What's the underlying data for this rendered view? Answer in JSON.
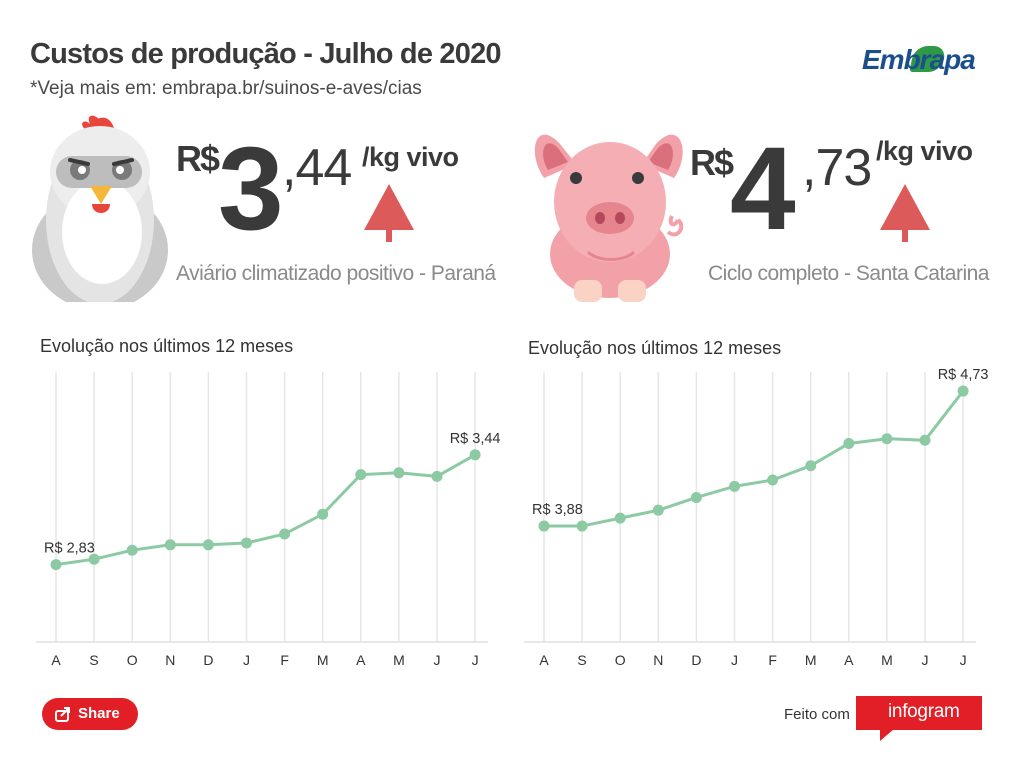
{
  "header": {
    "title": "Custos de produção - Julho de 2020",
    "subtitle": "*Veja mais em: embrapa.br/suinos-e-aves/cias",
    "logo": "Embrapa"
  },
  "chicken": {
    "currency": "R$",
    "integer": "3",
    "decimals": ",44",
    "unit": "/kg vivo",
    "caption": "Aviário climatizado positivo - Paraná",
    "trend": "up"
  },
  "pig": {
    "currency": "R$",
    "integer": "4",
    "decimals": ",73",
    "unit": "/kg vivo",
    "caption": "Ciclo completo - Santa Catarina",
    "trend": "up"
  },
  "colors": {
    "line": "#8ccaa4",
    "arrow": "#dd5a5a",
    "grid": "#e6e6e6",
    "brand_red": "#e21f26",
    "pig_pink": "#f2a1a8",
    "chicken_gray": "#c9c9c9"
  },
  "chart_data": [
    {
      "type": "line",
      "title": "Evolução nos últimos 12 meses",
      "categories": [
        "A",
        "S",
        "O",
        "N",
        "D",
        "J",
        "F",
        "M",
        "A",
        "M",
        "J",
        "J"
      ],
      "values": [
        2.83,
        2.86,
        2.91,
        2.94,
        2.94,
        2.95,
        3.0,
        3.11,
        3.33,
        3.34,
        3.32,
        3.44
      ],
      "labels": [
        {
          "index": 0,
          "text": "R$ 2,83"
        },
        {
          "index": 11,
          "text": "R$ 3,44"
        }
      ],
      "ylim": [
        2.4,
        3.9
      ],
      "grid": "vertical"
    },
    {
      "type": "line",
      "title": "Evolução nos últimos 12 meses",
      "categories": [
        "A",
        "S",
        "O",
        "N",
        "D",
        "J",
        "F",
        "M",
        "A",
        "M",
        "J",
        "J"
      ],
      "values": [
        3.88,
        3.88,
        3.93,
        3.98,
        4.06,
        4.13,
        4.17,
        4.26,
        4.4,
        4.43,
        4.42,
        4.73
      ],
      "labels": [
        {
          "index": 0,
          "text": "R$ 3,88"
        },
        {
          "index": 11,
          "text": "R$ 4,73"
        }
      ],
      "ylim": [
        3.15,
        4.85
      ],
      "grid": "vertical"
    }
  ],
  "footer": {
    "share_label": "Share",
    "made_with": "Feito com",
    "brand": "infogram"
  }
}
